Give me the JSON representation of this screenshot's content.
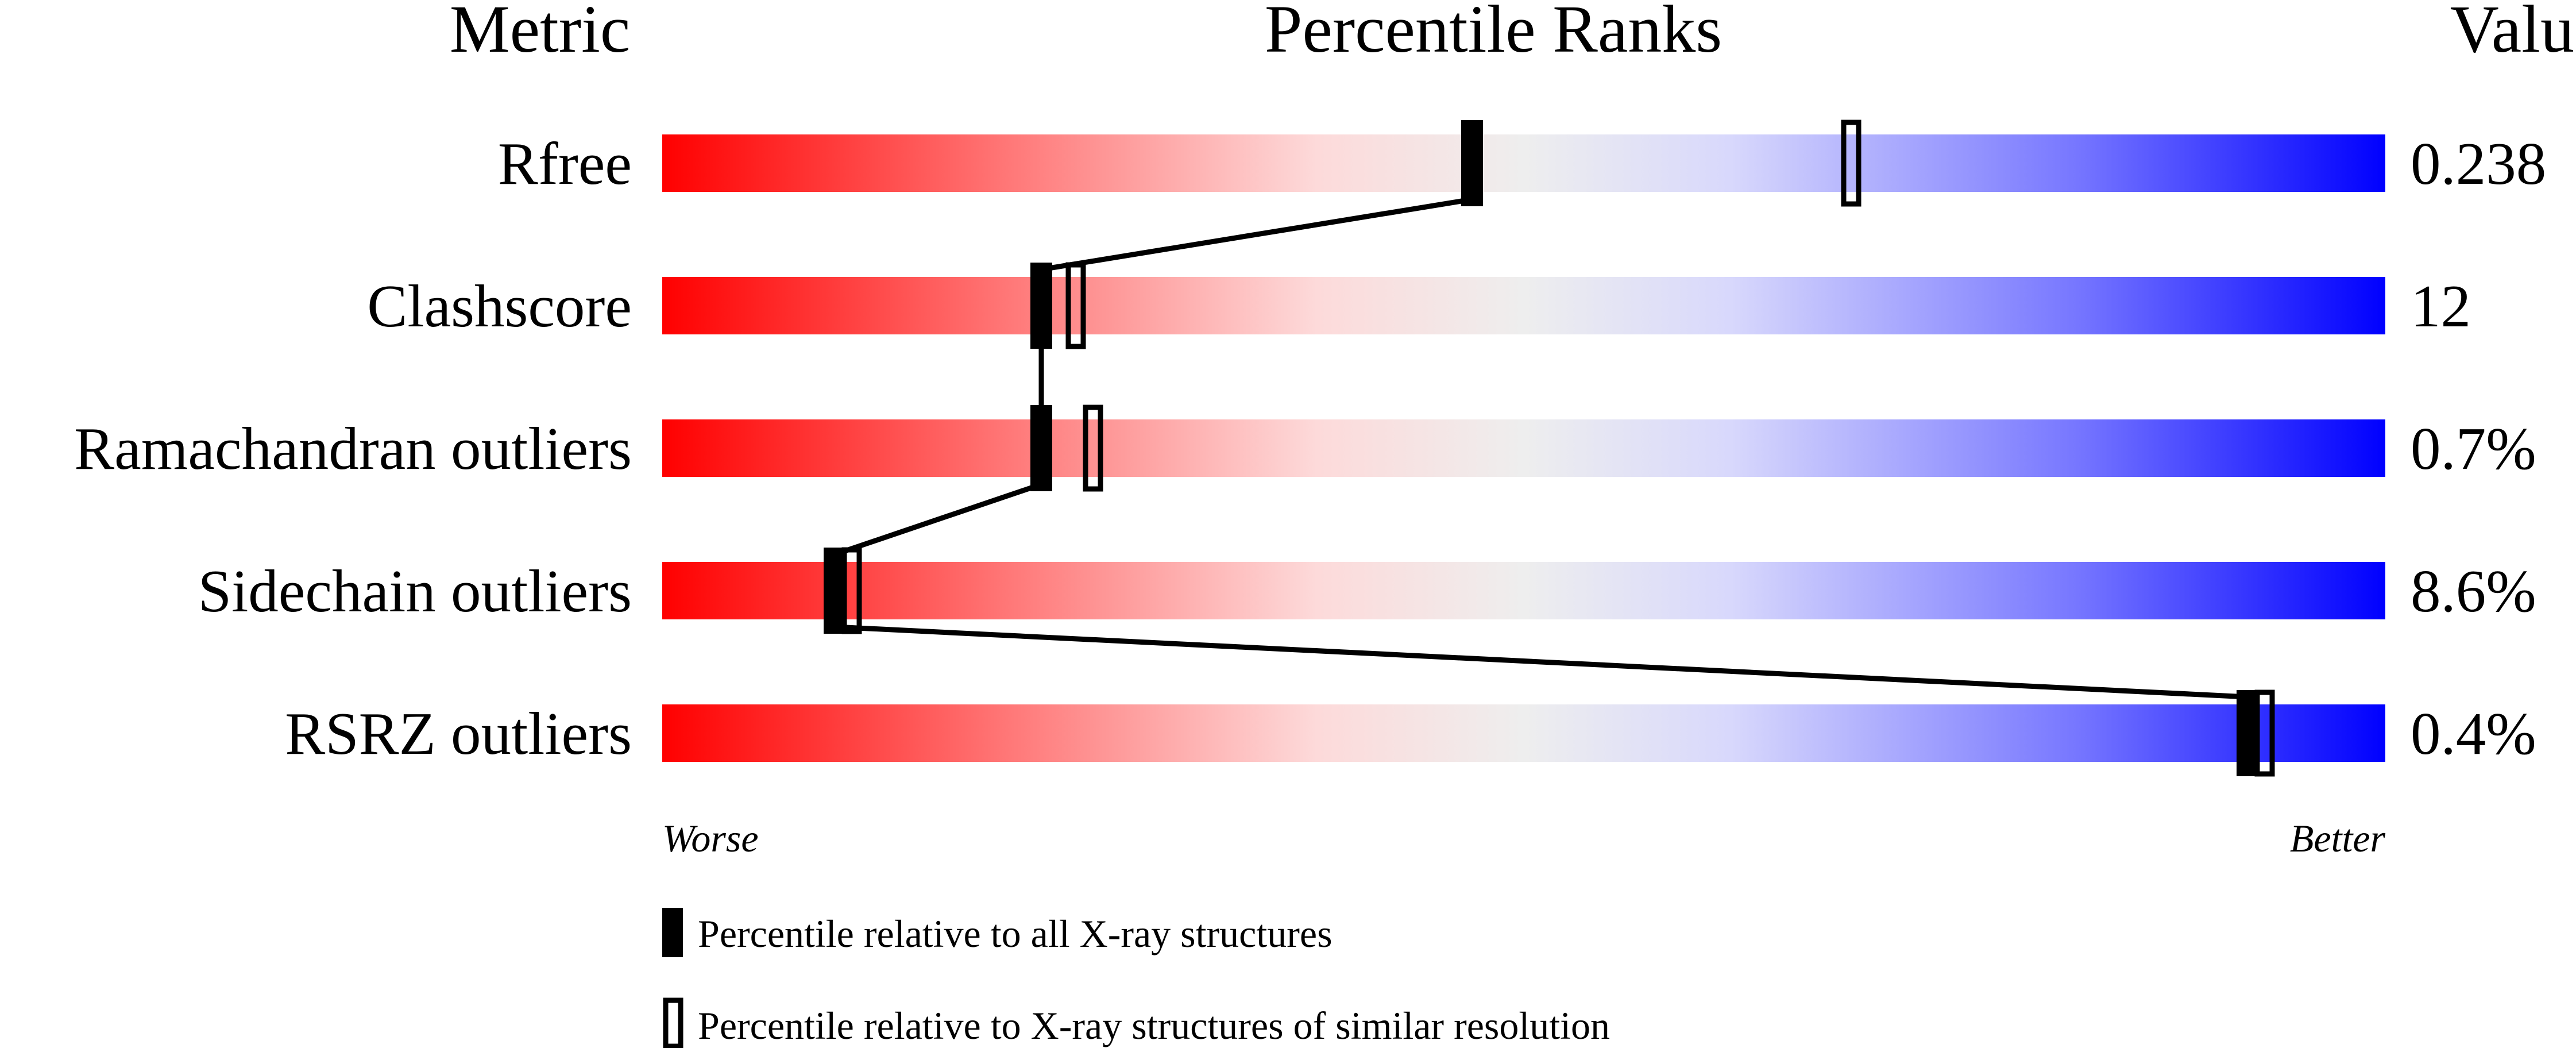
{
  "chart_data": {
    "type": "bar",
    "headers": {
      "metric": "Metric",
      "ranks": "Percentile Ranks",
      "value": "Value"
    },
    "xlim": [
      0,
      100
    ],
    "axis_labels": {
      "left": "Worse",
      "right": "Better"
    },
    "gradient_colors": [
      "#ff0000",
      "#ff7777",
      "#fddada",
      "#eeeeee",
      "#d8d8fc",
      "#7777ff",
      "#0000ff"
    ],
    "metrics": [
      {
        "name": "Rfree",
        "value": "0.238",
        "percentile_all": 47,
        "percentile_similar": 69
      },
      {
        "name": "Clashscore",
        "value": "12",
        "percentile_all": 22,
        "percentile_similar": 24
      },
      {
        "name": "Ramachandran outliers",
        "value": "0.7%",
        "percentile_all": 22,
        "percentile_similar": 25
      },
      {
        "name": "Sidechain outliers",
        "value": "8.6%",
        "percentile_all": 10,
        "percentile_similar": 11
      },
      {
        "name": "RSRZ outliers",
        "value": "0.4%",
        "percentile_all": 92,
        "percentile_similar": 93
      }
    ],
    "legend": {
      "all": "Percentile relative to all X-ray structures",
      "similar": "Percentile relative to X-ray structures of similar resolution"
    },
    "legend_placement": "bottom"
  }
}
